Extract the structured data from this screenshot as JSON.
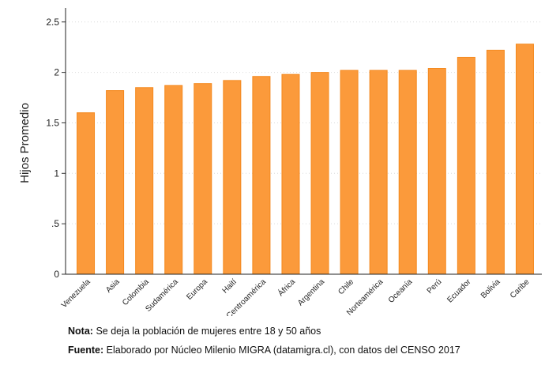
{
  "chart_data": {
    "type": "bar",
    "ylabel": "Hijos Promedio",
    "xlabel": "",
    "title": "",
    "categories": [
      "Venezuela",
      "Asia",
      "Colombia",
      "Sudamérica",
      "Europa",
      "Haití",
      "Centroamérica",
      "África",
      "Argentina",
      "Chile",
      "Norteamérica",
      "Oceanía",
      "Perú",
      "Ecuador",
      "Bolivia",
      "Caribe"
    ],
    "values": [
      1.6,
      1.82,
      1.85,
      1.87,
      1.89,
      1.92,
      1.96,
      1.98,
      2.0,
      2.02,
      2.02,
      2.02,
      2.04,
      2.15,
      2.22,
      2.28
    ],
    "ylim": [
      0,
      2.6
    ],
    "yticks": [
      0,
      0.5,
      1,
      1.5,
      2,
      2.5
    ],
    "ytick_labels": [
      "0",
      ".5",
      "1",
      "1.5",
      "2",
      "2.5"
    ],
    "grid": true,
    "bar_color": "#fb9a3b",
    "bar_edge_color": "#f4891e"
  },
  "footer": {
    "note_label": "Nota:",
    "note_text": "Se deja la población de mujeres entre 18 y 50 años",
    "source_label": "Fuente:",
    "source_text": "Elaborado por Núcleo Milenio MIGRA (datamigra.cl), con datos del CENSO 2017"
  }
}
